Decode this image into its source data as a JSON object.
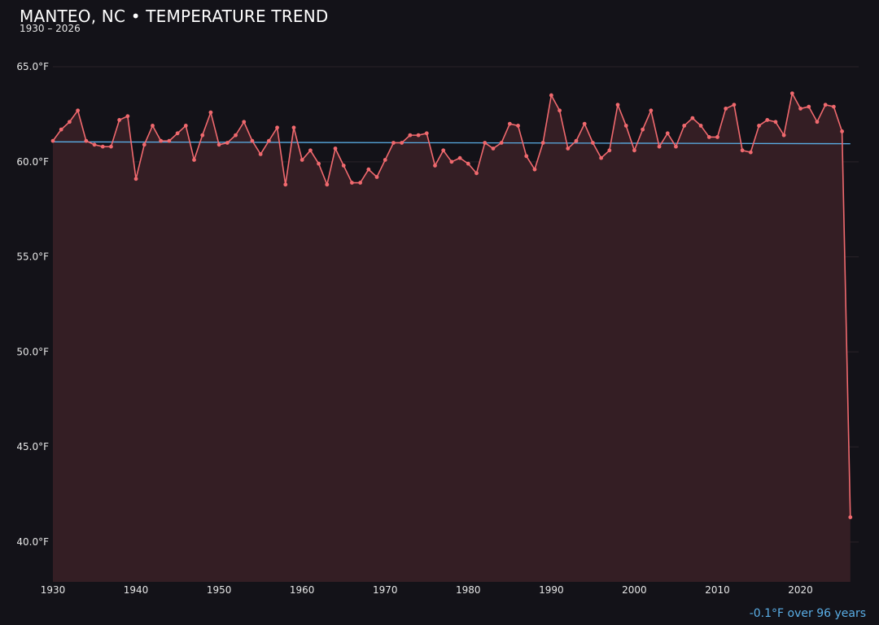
{
  "header": {
    "title": "MANTEO, NC • TEMPERATURE TREND",
    "subtitle": "1930 – 2026"
  },
  "footer": {
    "trend_note": "-0.1°F over 96 years"
  },
  "colors": {
    "background": "#131218",
    "line": "#f0696e",
    "area": "#341e24",
    "trend": "#5aaee6",
    "grid": "#2a2228",
    "text": "#e6e6e6"
  },
  "chart_data": {
    "type": "line",
    "title": "MANTEO, NC • TEMPERATURE TREND",
    "subtitle": "1930 – 2026",
    "xlabel": "",
    "ylabel": "",
    "xlim": [
      1930,
      2027
    ],
    "ylim": [
      37.9,
      66.8
    ],
    "x_ticks": [
      1930,
      1940,
      1950,
      1960,
      1970,
      1980,
      1990,
      2000,
      2010,
      2020
    ],
    "x_tick_labels": [
      "1930",
      "1940",
      "1950",
      "1960",
      "1970",
      "1980",
      "1990",
      "2000",
      "2010",
      "2020"
    ],
    "y_ticks": [
      40,
      45,
      50,
      55,
      60,
      65
    ],
    "y_tick_labels": [
      "40.0°F",
      "45.0°F",
      "50.0°F",
      "55.0°F",
      "60.0°F",
      "65.0°F"
    ],
    "grid": "horizontal",
    "fill_under_line": true,
    "series": [
      {
        "x": [
          1930,
          1931,
          1932,
          1933,
          1934,
          1935,
          1936,
          1937,
          1938,
          1939,
          1940,
          1941,
          1942,
          1943,
          1944,
          1945,
          1946,
          1947,
          1948,
          1949,
          1950,
          1951,
          1952,
          1953,
          1954,
          1955,
          1956,
          1957,
          1958,
          1959,
          1960,
          1961,
          1962,
          1963,
          1964,
          1965,
          1966,
          1967,
          1968,
          1969,
          1970,
          1971,
          1972,
          1973,
          1974,
          1975,
          1976,
          1977,
          1978,
          1979,
          1980,
          1981,
          1982,
          1983,
          1984,
          1985,
          1986,
          1987,
          1988,
          1989,
          1990,
          1991,
          1992,
          1993,
          1994,
          1995,
          1996,
          1997,
          1998,
          1999,
          2000,
          2001,
          2002,
          2003,
          2004,
          2005,
          2006,
          2007,
          2008,
          2009,
          2010,
          2011,
          2012,
          2013,
          2014,
          2015,
          2016,
          2017,
          2018,
          2019,
          2020,
          2021,
          2022,
          2023,
          2024,
          2025,
          2026
        ],
        "values": [
          61.1,
          61.7,
          62.1,
          62.7,
          61.1,
          60.9,
          60.8,
          60.8,
          62.2,
          62.4,
          59.1,
          60.9,
          61.9,
          61.1,
          61.1,
          61.5,
          61.9,
          60.1,
          61.4,
          62.6,
          60.9,
          61.0,
          61.4,
          62.1,
          61.1,
          60.4,
          61.1,
          61.8,
          58.8,
          61.8,
          60.1,
          60.6,
          59.9,
          58.8,
          60.7,
          59.8,
          58.9,
          58.9,
          59.6,
          59.2,
          60.1,
          61.0,
          61.0,
          61.4,
          61.4,
          61.5,
          59.8,
          60.6,
          60.0,
          60.2,
          59.9,
          59.4,
          61.0,
          60.7,
          61.0,
          62.0,
          61.9,
          60.3,
          59.6,
          61.0,
          63.5,
          62.7,
          60.7,
          61.1,
          62.0,
          61.0,
          60.2,
          60.6,
          63.0,
          61.9,
          60.6,
          61.7,
          62.7,
          60.8,
          61.5,
          60.8,
          61.9,
          62.3,
          61.9,
          61.3,
          61.3,
          62.8,
          63.0,
          60.6,
          60.5,
          61.9,
          62.2,
          62.1,
          61.4,
          63.6,
          62.8,
          62.9,
          62.1,
          63.0,
          62.9,
          61.6,
          41.3
        ]
      },
      {
        "x": [
          1930,
          2026
        ],
        "values": [
          61.05,
          60.95
        ]
      }
    ]
  }
}
